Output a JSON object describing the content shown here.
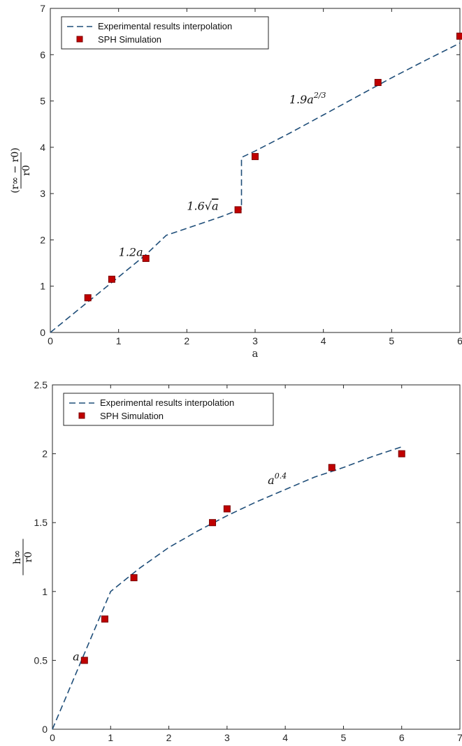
{
  "colors": {
    "line": "#1f4e79",
    "marker": "#c00000",
    "marker_edge": "#7a0000",
    "axis": "#262626"
  },
  "chart_data": [
    {
      "type": "line",
      "xlabel": "a",
      "ylabel": "(r∞ − r0) / r0",
      "xlim": [
        0,
        6
      ],
      "ylim": [
        0,
        7
      ],
      "xticks": [
        "0",
        "1",
        "2",
        "3",
        "4",
        "5",
        "6"
      ],
      "yticks": [
        "0",
        "1",
        "2",
        "3",
        "4",
        "5",
        "6",
        "7"
      ],
      "legend": {
        "placement": "top-left",
        "entries": [
          "Experimental results interpolation",
          "SPH Simulation"
        ]
      },
      "series": [
        {
          "name": "Experimental results interpolation",
          "style": "dashed",
          "x": [
            0,
            0.5,
            1.0,
            1.4,
            1.7,
            2.0,
            2.5,
            2.8,
            2.8,
            3.0,
            3.5,
            4.0,
            4.5,
            5.0,
            5.5,
            6.0
          ],
          "y": [
            0,
            0.6,
            1.2,
            1.68,
            2.1,
            2.25,
            2.5,
            2.67,
            3.78,
            3.92,
            4.3,
            4.7,
            5.1,
            5.5,
            5.88,
            6.25
          ]
        },
        {
          "name": "SPH Simulation",
          "style": "square-marker",
          "x": [
            0.55,
            0.9,
            1.4,
            2.75,
            3.0,
            4.8,
            6.0
          ],
          "y": [
            0.75,
            1.15,
            1.6,
            2.65,
            3.8,
            5.4,
            6.4
          ]
        }
      ],
      "annotations": [
        {
          "text": "1.2a",
          "x": 1.0,
          "y": 1.65
        },
        {
          "text": "1.6√a",
          "x": 2.0,
          "y": 2.65
        },
        {
          "text": "1.9a^(2/3)",
          "x": 3.5,
          "y": 4.95
        }
      ]
    },
    {
      "type": "line",
      "xlabel": "a",
      "ylabel": "h∞ / r0",
      "xlim": [
        0,
        7
      ],
      "ylim": [
        0,
        2.5
      ],
      "xticks": [
        "0",
        "1",
        "2",
        "3",
        "4",
        "5",
        "6",
        "7"
      ],
      "yticks": [
        "0",
        "0.5",
        "1",
        "1.5",
        "2",
        "2.5"
      ],
      "legend": {
        "placement": "top-left",
        "entries": [
          "Experimental results interpolation",
          "SPH Simulation"
        ]
      },
      "series": [
        {
          "name": "Experimental results interpolation",
          "style": "dashed",
          "x": [
            0,
            0.5,
            1.0,
            1.5,
            2.0,
            2.5,
            3.0,
            3.5,
            4.0,
            4.5,
            5.0,
            5.5,
            6.0
          ],
          "y": [
            0,
            0.5,
            1.0,
            1.17,
            1.32,
            1.44,
            1.55,
            1.65,
            1.74,
            1.83,
            1.9,
            1.98,
            2.05
          ]
        },
        {
          "name": "SPH Simulation",
          "style": "square-marker",
          "x": [
            0.55,
            0.9,
            1.4,
            2.75,
            3.0,
            4.8,
            6.0
          ],
          "y": [
            0.5,
            0.8,
            1.1,
            1.5,
            1.6,
            1.9,
            2.0
          ]
        }
      ],
      "annotations": [
        {
          "text": "a",
          "x": 0.35,
          "y": 0.5
        },
        {
          "text": "a^0.4",
          "x": 3.7,
          "y": 1.78
        }
      ]
    }
  ]
}
